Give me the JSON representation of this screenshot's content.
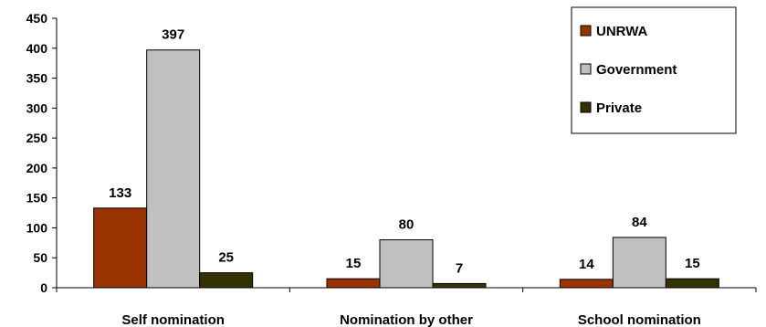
{
  "chart_data": {
    "type": "bar",
    "categories": [
      "Self nomination",
      "Nomination by other",
      "School nomination"
    ],
    "series": [
      {
        "name": "UNRWA",
        "values": [
          133,
          15,
          14
        ],
        "color": "#993300"
      },
      {
        "name": "Government",
        "values": [
          397,
          80,
          84
        ],
        "color": "#c0c0c0"
      },
      {
        "name": "Private",
        "values": [
          25,
          7,
          15
        ],
        "color": "#333300"
      }
    ],
    "title": "",
    "xlabel": "",
    "ylabel": "",
    "ylim": [
      0,
      450
    ],
    "yticks": [
      0,
      50,
      100,
      150,
      200,
      250,
      300,
      350,
      400,
      450
    ],
    "grid": false,
    "legend_position": "top-right"
  }
}
